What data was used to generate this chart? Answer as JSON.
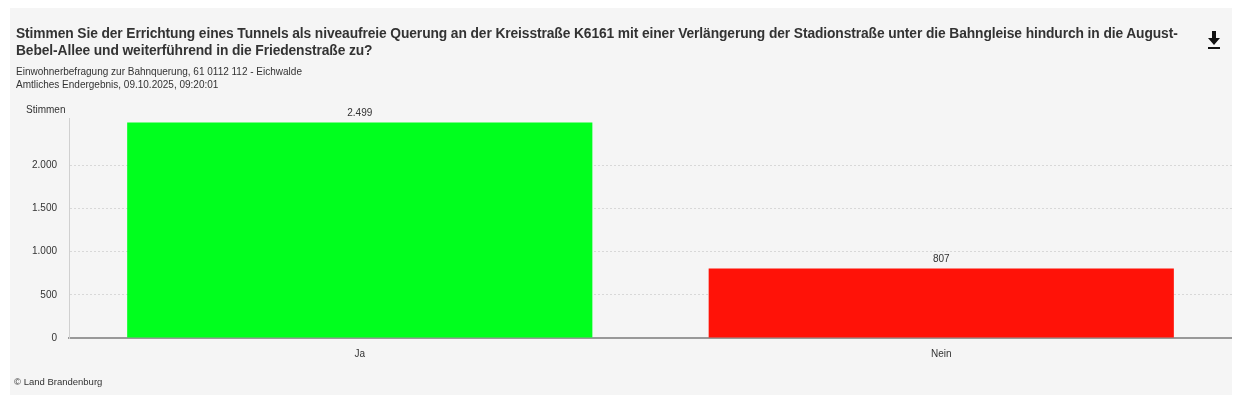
{
  "chart_data": {
    "type": "bar",
    "title": "Stimmen Sie der Errichtung eines Tunnels als niveaufreie Querung an der Kreisstraße K6161 mit einer Verlängerung der Stadionstraße unter die Bahngleise hindurch in die August-Bebel-Allee und weiterführend in die Friedenstraße zu?",
    "subtitle": "Einwohnerbefragung zur Bahnquerung, 61 0112 112 - Eichwalde\nAmtliches Endergebnis, 09.10.2025, 09:20:01",
    "ylabel": "Stimmen",
    "categories": [
      "Ja",
      "Nein"
    ],
    "values": [
      2499,
      807
    ],
    "colors": [
      "#00ff1e",
      "#ff1208"
    ],
    "value_labels": [
      "2.499",
      "807"
    ],
    "ylim": [
      0,
      2550
    ],
    "yticks": [
      {
        "value": 0,
        "label": "0"
      },
      {
        "value": 500,
        "label": "500"
      },
      {
        "value": 1000,
        "label": "1.000"
      },
      {
        "value": 1500,
        "label": "1.500"
      },
      {
        "value": 2000,
        "label": "2.000"
      }
    ],
    "grid": "y",
    "legend": false,
    "annotations": [
      "© Land Brandenburg"
    ]
  }
}
